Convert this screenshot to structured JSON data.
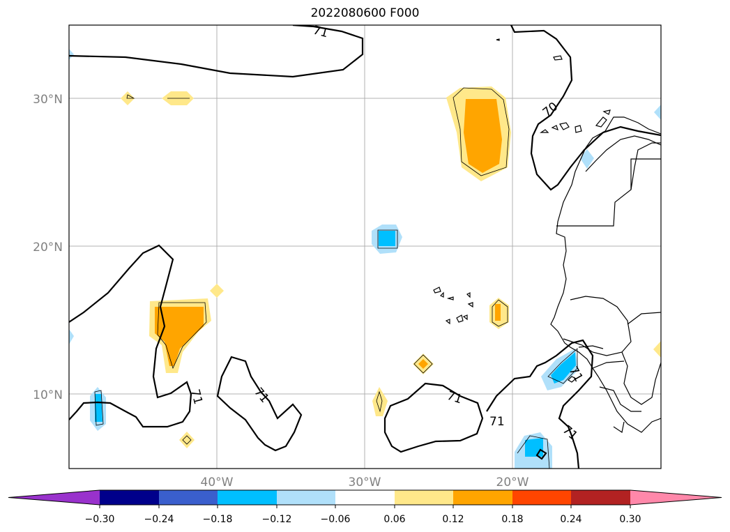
{
  "title": "2022080600 F000",
  "map": {
    "lat_labels": [
      "30°N",
      "20°N",
      "10°N"
    ],
    "lon_labels": [
      "40°W",
      "30°W",
      "20°W"
    ],
    "contour_labels": [
      "71",
      "70",
      "71",
      "71",
      "71",
      "71",
      "71",
      "71"
    ]
  },
  "colorbar": {
    "ticks": [
      "−0.30",
      "−0.24",
      "−0.18",
      "−0.12",
      "−0.06",
      "0.06",
      "0.12",
      "0.18",
      "0.24",
      "0.30"
    ],
    "colors": [
      "#9932cc",
      "#00008b",
      "#3a5fcd",
      "#00bfff",
      "#b0e0fa",
      "#ffffff",
      "#ffe88a",
      "#ffa500",
      "#ff4500",
      "#b22222",
      "#ff88aa"
    ]
  }
}
